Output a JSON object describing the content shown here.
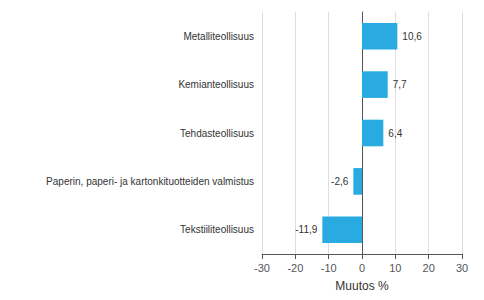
{
  "chart_data": {
    "type": "bar",
    "orientation": "horizontal",
    "categories": [
      "Tekstiiliteollisuus",
      "Paperin, paperi- ja kartonkituotteiden valmistus",
      "Tehdasteollisuus",
      "Kemianteollisuus",
      "Metalliteollisuus"
    ],
    "values": [
      -11.9,
      -2.6,
      6.4,
      7.7,
      10.6
    ],
    "value_labels": [
      "-11,9",
      "-2,6",
      "6,4",
      "7,7",
      "10,6"
    ],
    "data_labels": true,
    "color": "#29abe2",
    "xlabel": "Muutos %",
    "xlim": [
      -30,
      30
    ],
    "xticks": [
      -30,
      -20,
      -10,
      0,
      10,
      20,
      30
    ],
    "grid": true
  }
}
